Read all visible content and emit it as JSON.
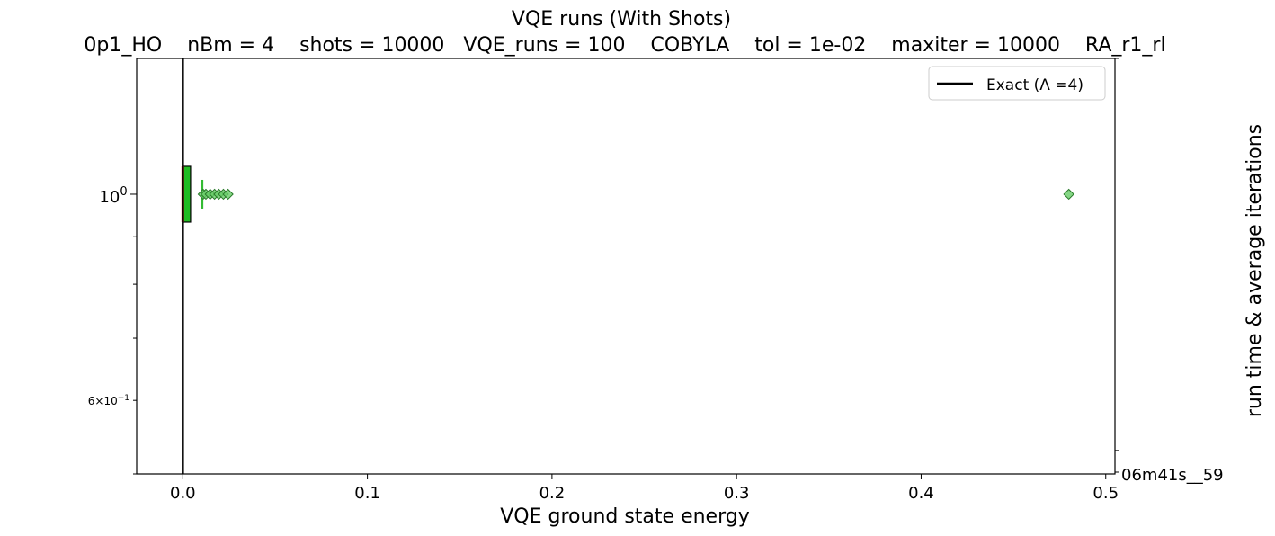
{
  "chart_data": {
    "type": "box",
    "title": "VQE runs (With Shots)",
    "subtitle": "0p1_HO    nBm = 4    shots = 10000   VQE_runs = 100    COBYLA    tol = 1e-02    maxiter = 10000    RA_r1_rl",
    "xlabel": "VQE ground state energy",
    "ylabel_right": "run time & average iterations",
    "xlim": [
      -0.025,
      0.505
    ],
    "ylim": [
      0.5,
      1.4
    ],
    "yscale": "log",
    "x_ticks": [
      0.0,
      0.1,
      0.2,
      0.3,
      0.4,
      0.5
    ],
    "x_tick_labels": [
      "0.0",
      "0.1",
      "0.2",
      "0.3",
      "0.4",
      "0.5"
    ],
    "y_tick_major": [
      {
        "value": 1.0,
        "base": "10",
        "exp": "0"
      }
    ],
    "y_tick_minor_labeled": [
      {
        "value": 0.6,
        "coef": "6",
        "base": "10",
        "exp": "−1"
      }
    ],
    "y_minor_unlabeled": [
      0.5,
      0.7,
      0.8,
      0.9
    ],
    "right_tick_labels": [
      {
        "value": 0.5,
        "text": "06m41s__59"
      }
    ],
    "right_minor_ticks": [
      0.53
    ],
    "grid": false,
    "legend": {
      "position": "top-right",
      "entries": [
        {
          "label": "Exact (Λ =4)",
          "color": "#000000"
        }
      ]
    },
    "reference_line": {
      "x": 0.0,
      "label": "Exact (Λ =4)",
      "color": "#000000"
    },
    "boxes": [
      {
        "position": 1.0,
        "q1": 0.0,
        "median": 0.0,
        "q3": 0.0042,
        "whisker_low": 0.0,
        "whisker_high": 0.0105,
        "fill": "#22bb22",
        "median_color": "#ee2222",
        "whisker_color": "#33bb33",
        "outliers": [
          0.011,
          0.0125,
          0.0148,
          0.0172,
          0.0195,
          0.022,
          0.0245,
          0.48
        ]
      }
    ],
    "colors": {
      "outlier_fill": "#66cc66",
      "outlier_edge": "#2a7a2a"
    }
  }
}
